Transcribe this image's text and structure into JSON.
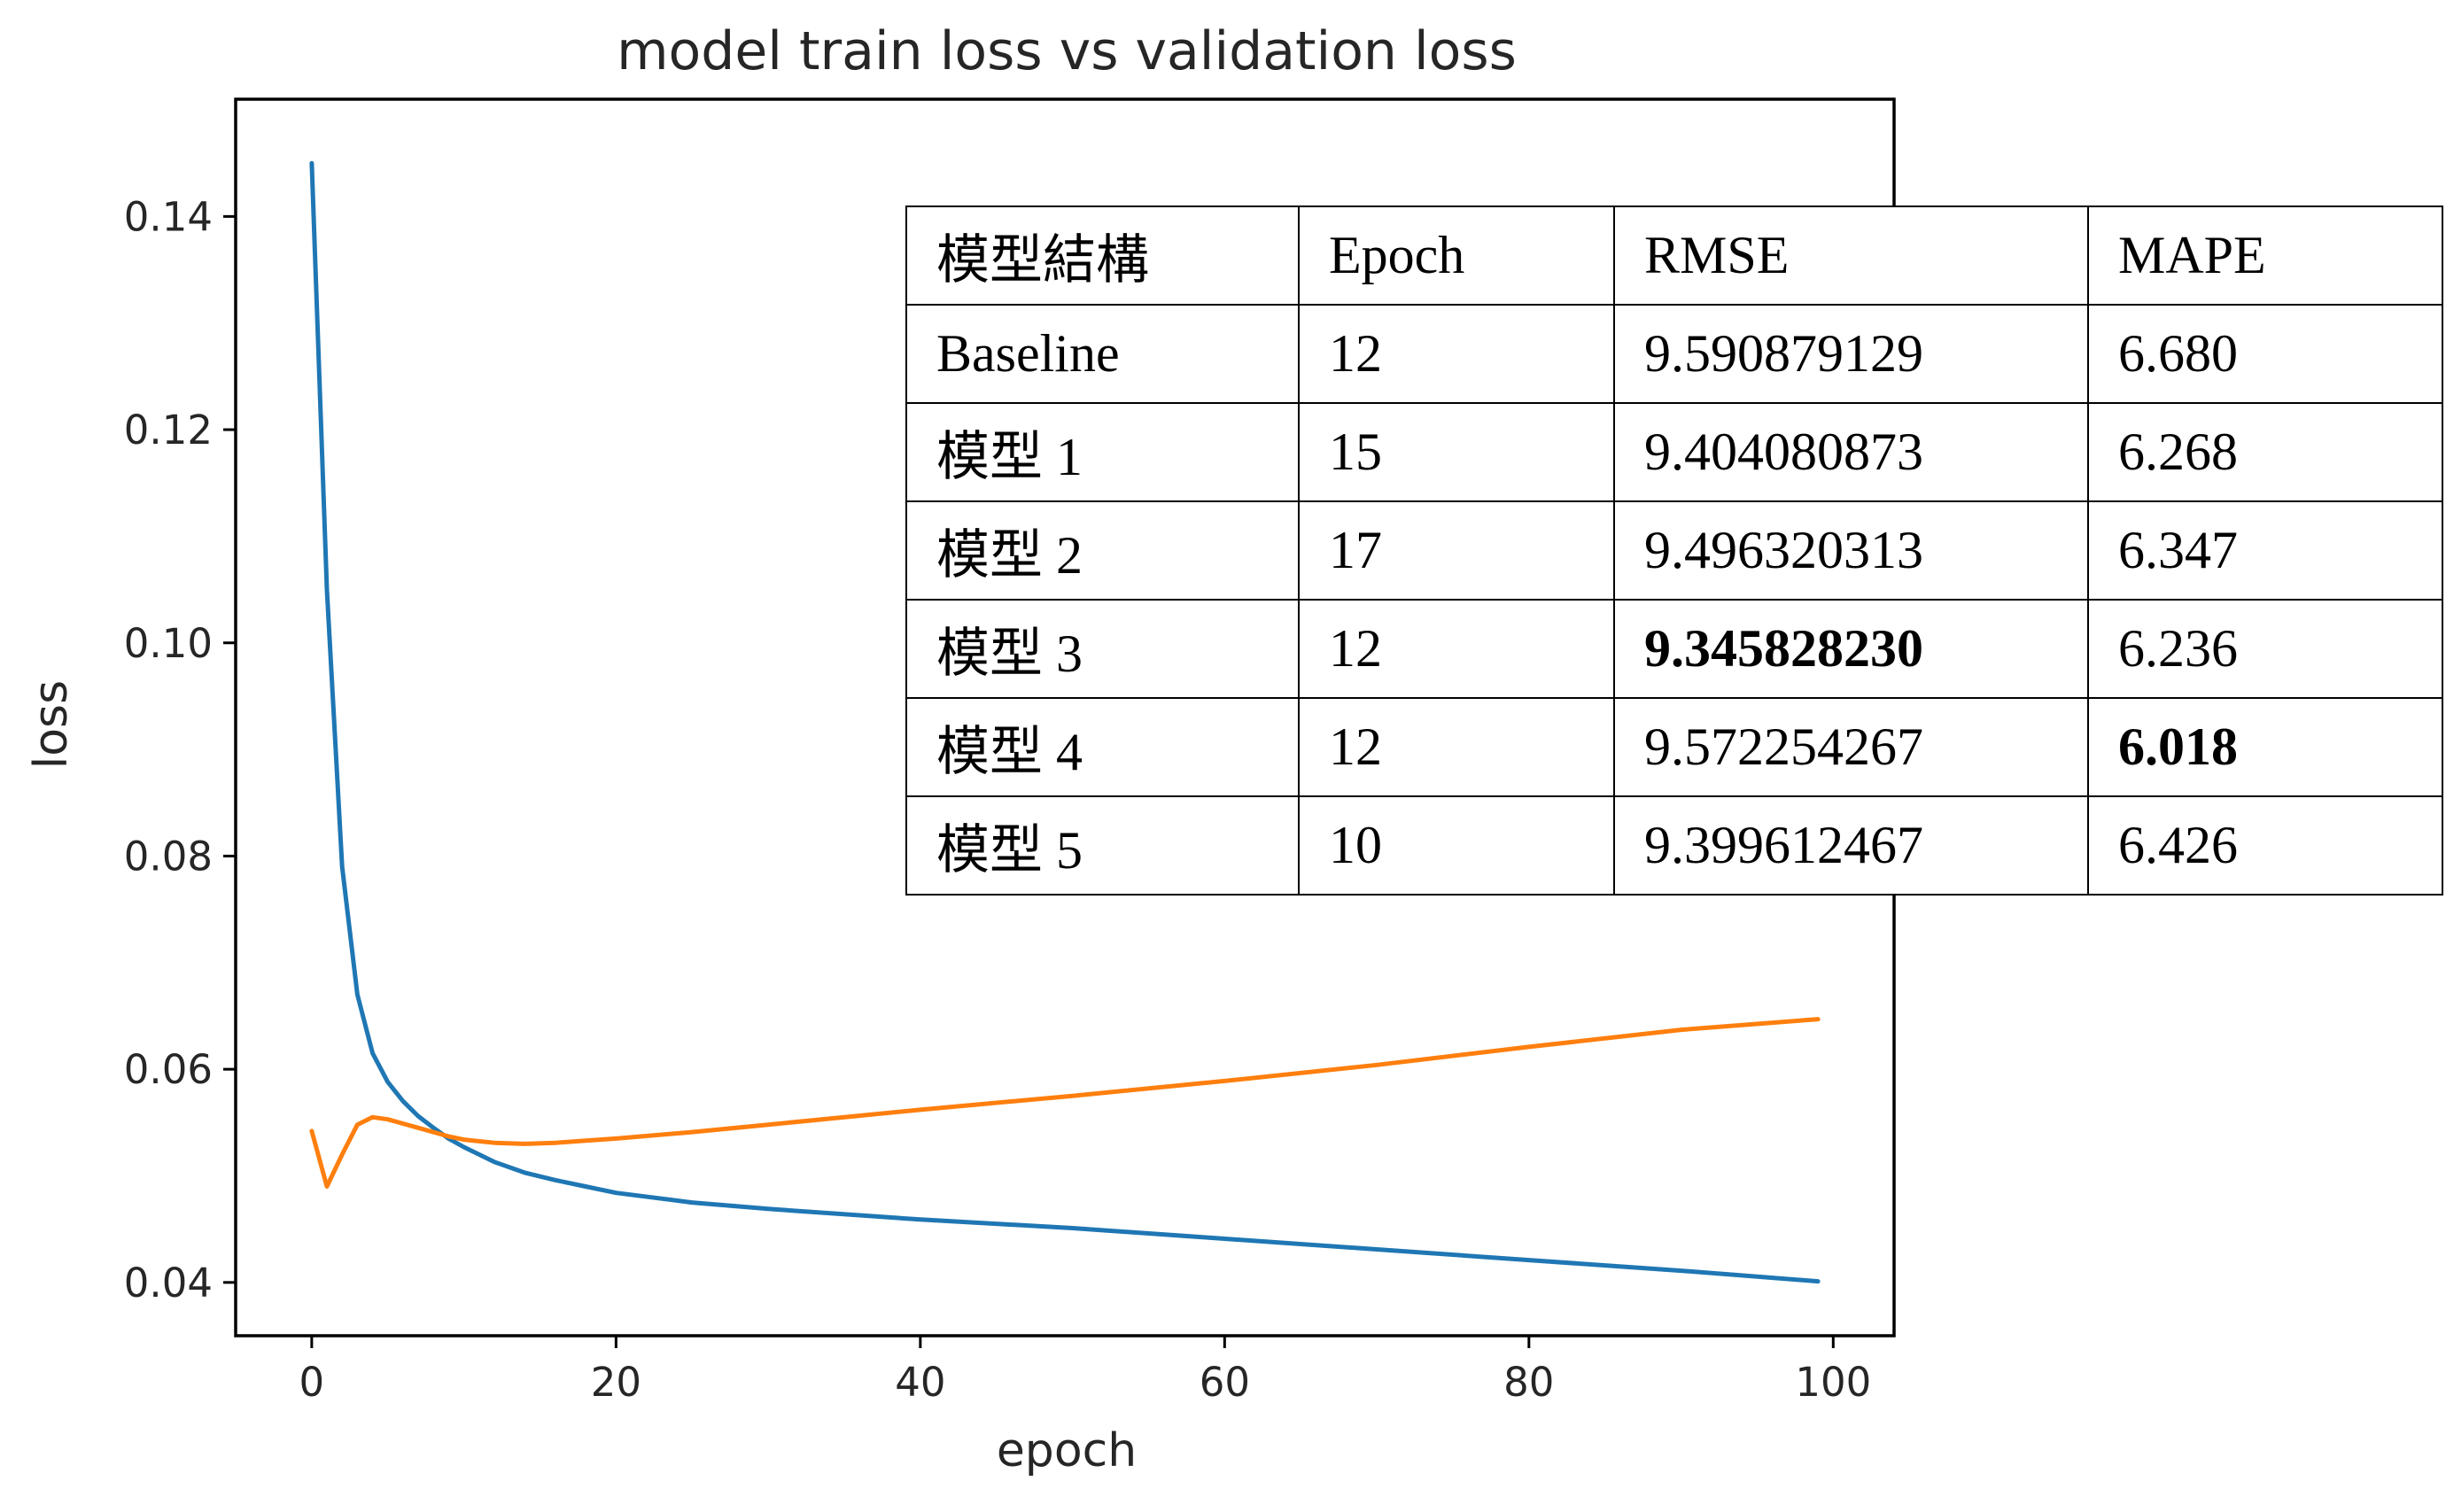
{
  "chart_data": {
    "type": "line",
    "title": "model train loss vs validation loss",
    "xlabel": "epoch",
    "ylabel": "loss",
    "xlim": [
      -5,
      104
    ],
    "ylim": [
      0.035,
      0.151
    ],
    "xticks": [
      0,
      20,
      40,
      60,
      80,
      100
    ],
    "yticks": [
      0.04,
      0.06,
      0.08,
      0.1,
      0.12,
      0.14
    ],
    "ytick_labels": [
      "0.04",
      "0.06",
      "0.08",
      "0.10",
      "0.12",
      "0.14"
    ],
    "grid": false,
    "series": [
      {
        "color": "#1f77b4",
        "x": [
          0,
          1,
          2,
          3,
          4,
          5,
          6,
          7,
          8,
          9,
          10,
          12,
          14,
          16,
          18,
          20,
          25,
          30,
          40,
          50,
          60,
          70,
          80,
          90,
          99
        ],
        "y": [
          0.145,
          0.105,
          0.079,
          0.067,
          0.0615,
          0.0588,
          0.057,
          0.0556,
          0.0545,
          0.0535,
          0.0527,
          0.0513,
          0.0503,
          0.0496,
          0.049,
          0.0484,
          0.0475,
          0.0469,
          0.0459,
          0.0451,
          0.0441,
          0.0431,
          0.0421,
          0.0411,
          0.0401
        ]
      },
      {
        "color": "#ff7f0e",
        "x": [
          0,
          1,
          2,
          3,
          4,
          5,
          6,
          7,
          8,
          9,
          10,
          12,
          14,
          16,
          18,
          20,
          25,
          30,
          40,
          50,
          60,
          70,
          80,
          90,
          99
        ],
        "y": [
          0.0542,
          0.049,
          0.052,
          0.0548,
          0.0555,
          0.0553,
          0.0549,
          0.0545,
          0.0541,
          0.0537,
          0.0534,
          0.0531,
          0.053,
          0.0531,
          0.0533,
          0.0535,
          0.0541,
          0.0548,
          0.0562,
          0.0575,
          0.0589,
          0.0604,
          0.0621,
          0.0637,
          0.0647
        ]
      }
    ]
  },
  "table": {
    "header": [
      "模型結構",
      "Epoch",
      "RMSE",
      "MAPE"
    ],
    "rows": [
      [
        "Baseline",
        "12",
        "9.590879129",
        "6.680"
      ],
      [
        "模型 1",
        "15",
        "9.404080873",
        "6.268"
      ],
      [
        "模型 2",
        "17",
        "9.496320313",
        "6.347"
      ],
      [
        "模型 3",
        "12",
        "9.345828230",
        "6.236"
      ],
      [
        "模型 4",
        "12",
        "9.572254267",
        "6.018"
      ],
      [
        "模型 5",
        "10",
        "9.399612467",
        "6.426"
      ]
    ]
  }
}
